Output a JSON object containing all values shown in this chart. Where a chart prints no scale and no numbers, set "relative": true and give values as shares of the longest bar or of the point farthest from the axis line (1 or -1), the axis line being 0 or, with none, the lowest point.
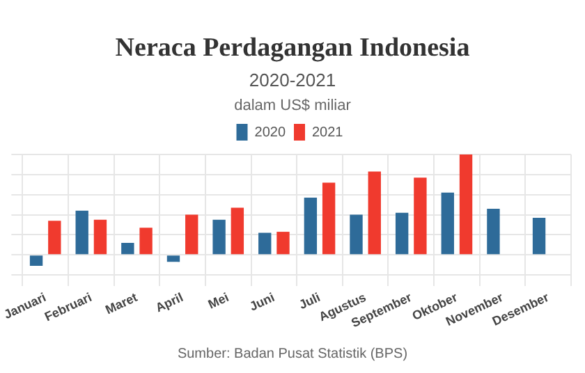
{
  "chart_data": {
    "type": "bar",
    "title": "Neraca Perdagangan Indonesia",
    "subtitle": "2020-2021",
    "ylabel": "dalam US$ miliar",
    "categories": [
      "Januari",
      "Februari",
      "Maret",
      "April",
      "Mei",
      "Juni",
      "Juli",
      "Agustus",
      "September",
      "Oktober",
      "November",
      "Desember"
    ],
    "series": [
      {
        "name": "2020",
        "color": "#2e6b99",
        "values": [
          -0.11,
          0.44,
          0.12,
          -0.07,
          0.35,
          0.22,
          0.57,
          0.4,
          0.42,
          0.62,
          0.46,
          0.37
        ]
      },
      {
        "name": "2021",
        "color": "#f03a2e",
        "values": [
          0.34,
          0.35,
          0.27,
          0.4,
          0.47,
          0.23,
          0.72,
          0.83,
          0.77,
          1,
          null,
          null
        ]
      }
    ],
    "relative": true,
    "grid": true,
    "legend": "top",
    "annotations": [
      "Sumber: Badan Pusat Statistik (BPS)"
    ]
  }
}
